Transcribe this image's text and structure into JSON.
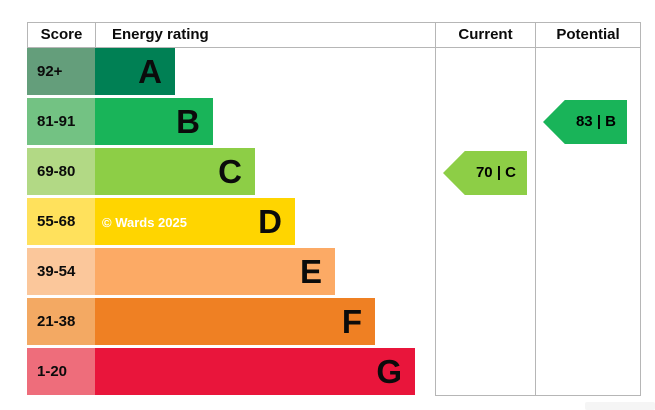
{
  "header": {
    "score": "Score",
    "energy_rating": "Energy rating",
    "current": "Current",
    "potential": "Potential"
  },
  "bands": [
    {
      "range": "92+",
      "letter": "A",
      "bar_color": "#008054",
      "range_color": "#649e7b"
    },
    {
      "range": "81-91",
      "letter": "B",
      "bar_color": "#19b459",
      "range_color": "#73c283"
    },
    {
      "range": "69-80",
      "letter": "C",
      "bar_color": "#8dce46",
      "range_color": "#b2d985"
    },
    {
      "range": "55-68",
      "letter": "D",
      "bar_color": "#ffd500",
      "range_color": "#ffe15c"
    },
    {
      "range": "39-54",
      "letter": "E",
      "bar_color": "#fcaa65",
      "range_color": "#fbc79b"
    },
    {
      "range": "21-38",
      "letter": "F",
      "bar_color": "#ef8023",
      "range_color": "#f3a963"
    },
    {
      "range": "1-20",
      "letter": "G",
      "bar_color": "#e9153b",
      "range_color": "#ee6d7b"
    }
  ],
  "current_arrow": {
    "label": "70 | C",
    "score": 70,
    "band": "C",
    "color": "#8dce46"
  },
  "potential_arrow": {
    "label": "83 | B",
    "score": 83,
    "band": "B",
    "color": "#19b459"
  },
  "watermark": "© Wards 2025",
  "grid_color": "#b6b6b6",
  "chart_data": {
    "type": "bar",
    "title": "Energy rating",
    "orientation": "horizontal",
    "categories": [
      "A",
      "B",
      "C",
      "D",
      "E",
      "F",
      "G"
    ],
    "score_ranges": [
      "92+",
      "81-91",
      "69-80",
      "55-68",
      "39-54",
      "21-38",
      "1-20"
    ],
    "band_colors": [
      "#008054",
      "#19b459",
      "#8dce46",
      "#ffd500",
      "#fcaa65",
      "#ef8023",
      "#e9153b"
    ],
    "bar_relative_widths": [
      1,
      2,
      3,
      4,
      5,
      6,
      7
    ],
    "columns": [
      "Score",
      "Energy rating",
      "Current",
      "Potential"
    ],
    "current": {
      "score": 70,
      "rating": "C"
    },
    "potential": {
      "score": 83,
      "rating": "B"
    },
    "annotations": [
      "© Wards 2025"
    ],
    "grid": "column-separators-only",
    "legend": "none"
  }
}
